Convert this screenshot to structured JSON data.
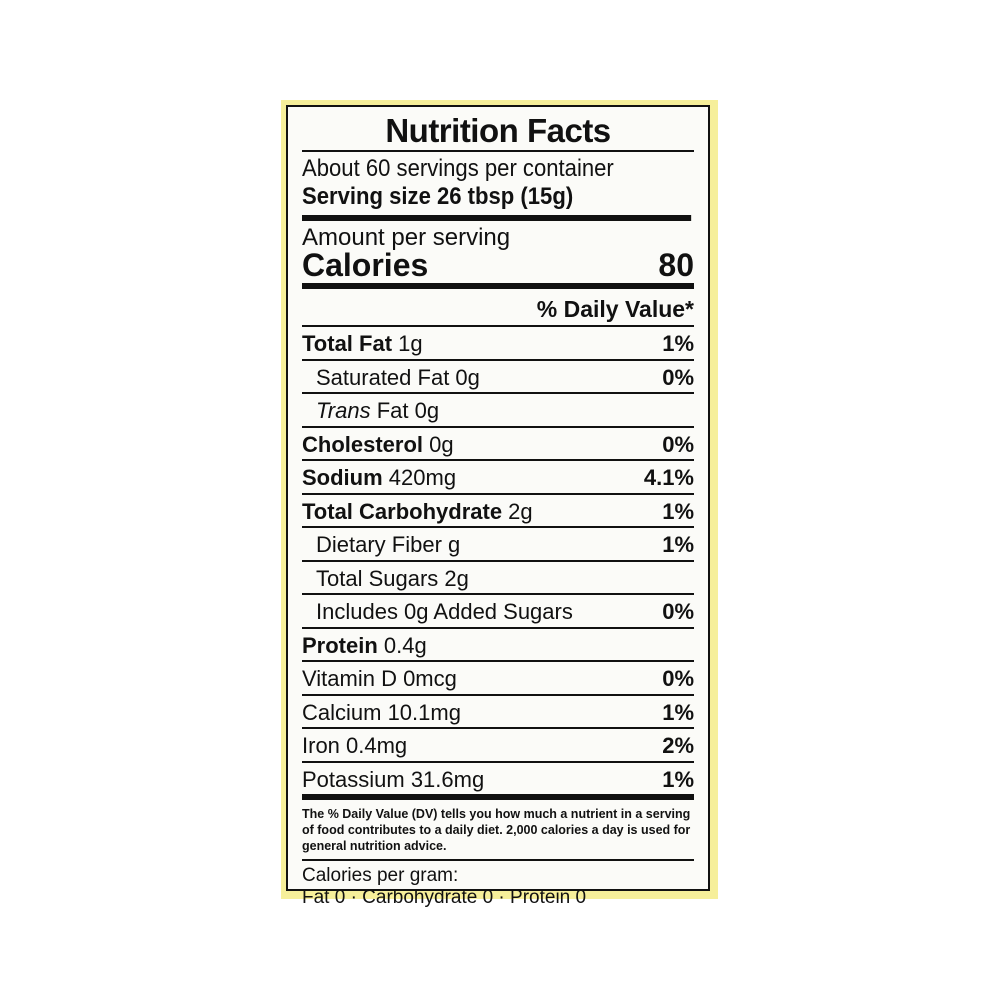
{
  "title": "Nutrition Facts",
  "servings": "About 60 servings per container",
  "serving_size": "Serving size 26 tbsp (15g)",
  "amount_per_serving": "Amount per serving",
  "calories_label": "Calories",
  "calories_value": "80",
  "dv_header": "% Daily Value*",
  "rows": [
    {
      "bold": "Total Fat",
      "text": " 1g",
      "dv": "1%"
    },
    {
      "bold": "",
      "text": "Saturated Fat 0g",
      "dv": "0%"
    },
    {
      "italic": "Trans",
      "text": " Fat 0g",
      "dv": ""
    },
    {
      "bold": "Cholesterol",
      "text": " 0g",
      "dv": "0%"
    },
    {
      "bold": "Sodium",
      "text": " 420mg",
      "dv": "4.1%"
    },
    {
      "bold": "Total Carbohydrate",
      "text": " 2g",
      "dv": "1%"
    },
    {
      "bold": "",
      "text": "Dietary Fiber g",
      "dv": "1%"
    },
    {
      "bold": "",
      "text": "Total Sugars 2g",
      "dv": ""
    },
    {
      "bold": "",
      "text": "Includes 0g Added Sugars",
      "dv": "0%"
    },
    {
      "bold": "Protein",
      "text": " 0.4g",
      "dv": ""
    },
    {
      "bold": "",
      "text": "Vitamin D 0mcg",
      "dv": "0%"
    },
    {
      "bold": "",
      "text": "Calcium 10.1mg",
      "dv": "1%"
    },
    {
      "bold": "",
      "text": "Iron 0.4mg",
      "dv": "2%"
    },
    {
      "bold": "",
      "text": "Potassium 31.6mg",
      "dv": "1%"
    }
  ],
  "footnote": "The % Daily Value (DV) tells you how much a nutrient in a serving of food contributes to a daily diet. 2,000 calories a day is used for general nutrition advice.",
  "calories_per_gram": "Calories per gram:",
  "calories_per_gram_values": "Fat 0 · Carbohydrate 0 · Protein 0",
  "colors": {
    "background": "#f6ef9a",
    "label": "#fbfbf8"
  }
}
